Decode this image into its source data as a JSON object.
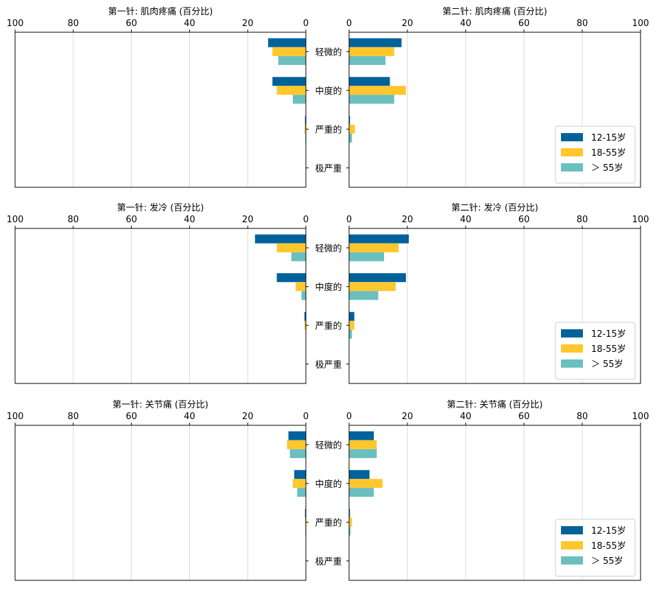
{
  "colors": {
    "12-15": "#00629B",
    "18-55": "#FFC72C",
    "55plus": "#6BBFBF",
    "grid": "#d9d9d9"
  },
  "chart_data": {
    "type": "bar",
    "orientation": "horizontal",
    "categories": [
      "轻微的",
      "中度的",
      "严重的",
      "极严重"
    ],
    "axis_ticks": [
      "0",
      "20",
      "40",
      "60",
      "80",
      "100"
    ],
    "xlim": [
      0,
      100
    ],
    "legend": {
      "position": "bottom-right",
      "entries": [
        "12-15岁",
        "18-55岁",
        "＞ 55岁"
      ]
    },
    "panels": [
      {
        "row": 0,
        "side": "left",
        "title": "第一针: 肌肉疼痛 (百分比)",
        "series": [
          {
            "name": "12-15岁",
            "values": [
              13,
              11.5,
              0.3,
              0
            ]
          },
          {
            "name": "18-55岁",
            "values": [
              11.5,
              10,
              0.5,
              0
            ]
          },
          {
            "name": "＞ 55岁",
            "values": [
              9.5,
              4.5,
              0.2,
              0
            ]
          }
        ]
      },
      {
        "row": 0,
        "side": "right",
        "title": "第二针: 肌肉疼痛 (百分比)",
        "series": [
          {
            "name": "12-15岁",
            "values": [
              18,
              14,
              0.3,
              0
            ]
          },
          {
            "name": "18-55岁",
            "values": [
              15.5,
              19.5,
              2,
              0
            ]
          },
          {
            "name": "＞ 55岁",
            "values": [
              12.5,
              15.5,
              1,
              0
            ]
          }
        ]
      },
      {
        "row": 1,
        "side": "left",
        "title": "第一针: 发冷 (百分比)",
        "series": [
          {
            "name": "12-15岁",
            "values": [
              17.5,
              10,
              0.5,
              0
            ]
          },
          {
            "name": "18-55岁",
            "values": [
              10,
              3.5,
              0.5,
              0
            ]
          },
          {
            "name": "＞ 55岁",
            "values": [
              5,
              1.5,
              0,
              0
            ]
          }
        ]
      },
      {
        "row": 1,
        "side": "right",
        "title": "第二针: 发冷 (百分比)",
        "series": [
          {
            "name": "12-15岁",
            "values": [
              20.5,
              19.5,
              1.8,
              0
            ]
          },
          {
            "name": "18-55岁",
            "values": [
              17,
              16,
              1.8,
              0
            ]
          },
          {
            "name": "＞ 55岁",
            "values": [
              12,
              10,
              1,
              0
            ]
          }
        ]
      },
      {
        "row": 2,
        "side": "left",
        "title": "第一针: 关节痛 (百分比)",
        "series": [
          {
            "name": "12-15岁",
            "values": [
              6,
              4,
              0.3,
              0
            ]
          },
          {
            "name": "18-55岁",
            "values": [
              6.5,
              4.5,
              0.3,
              0
            ]
          },
          {
            "name": "＞ 55岁",
            "values": [
              5.5,
              3,
              0.2,
              0
            ]
          }
        ]
      },
      {
        "row": 2,
        "side": "right",
        "title": "第二针: 关节痛 (百分比)",
        "series": [
          {
            "name": "12-15岁",
            "values": [
              8.5,
              7,
              0.3,
              0
            ]
          },
          {
            "name": "18-55岁",
            "values": [
              9.5,
              11.5,
              1,
              0
            ]
          },
          {
            "name": "＞ 55岁",
            "values": [
              9.5,
              8.5,
              0.5,
              0
            ]
          }
        ]
      }
    ]
  }
}
